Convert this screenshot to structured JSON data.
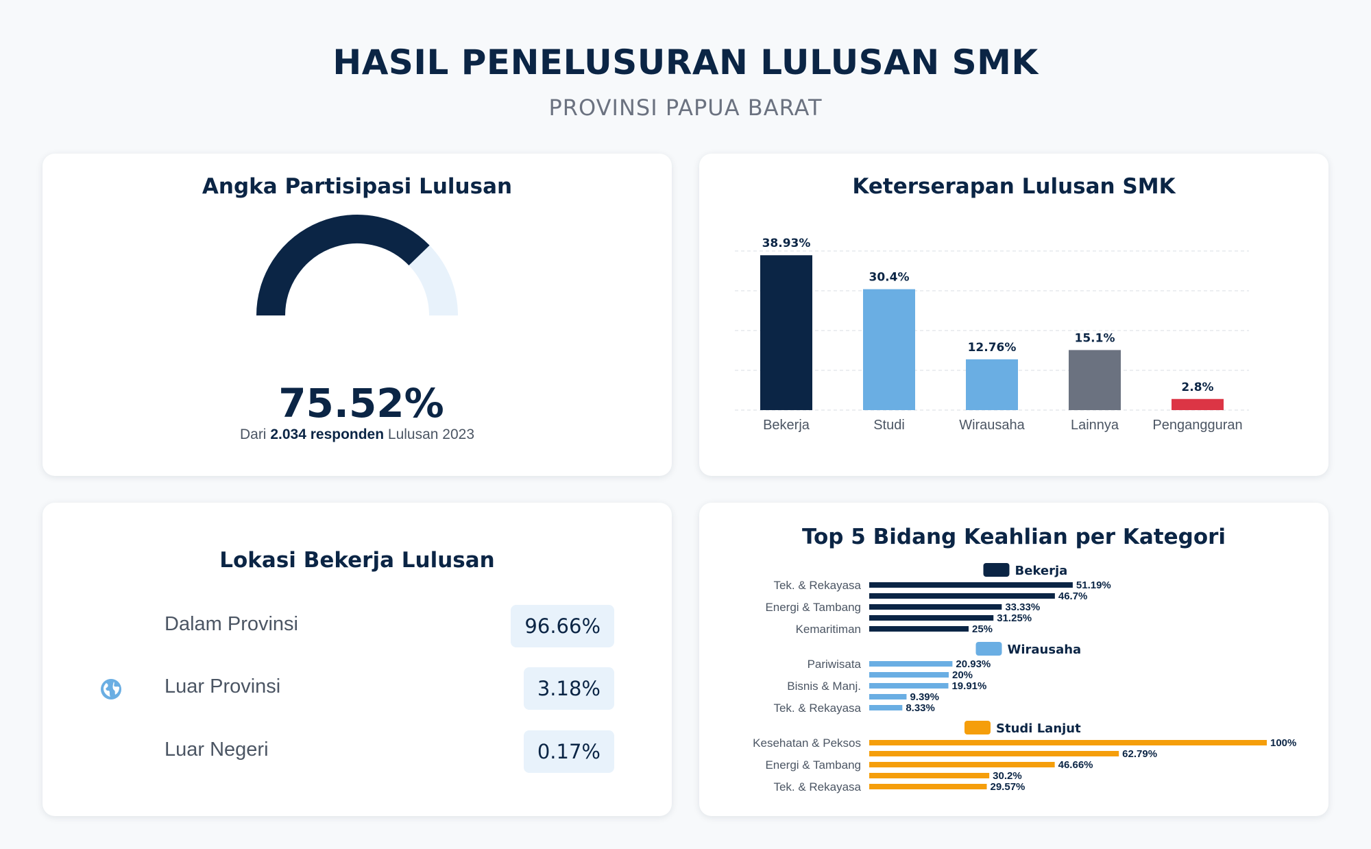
{
  "header": {
    "title": "HASIL PENELUSURAN LULUSAN SMK",
    "subtitle": "PROVINSI PAPUA BARAT"
  },
  "partisipasi": {
    "title": "Angka Partisipasi Lulusan",
    "value_label": "75.52%",
    "value": 75.52,
    "note_prefix": "Dari",
    "note_bold": "2.034 responden",
    "note_suffix": "Lulusan 2023",
    "colors": {
      "fill": "#0b2545",
      "track": "#e8f2fb"
    }
  },
  "keterserapan": {
    "title": "Keterserapan Lulusan SMK"
  },
  "lokasi": {
    "title": "Lokasi Bekerja Lulusan",
    "icon": "globe-icon",
    "rows": [
      {
        "label": "Dalam Provinsi",
        "value": "96.66%"
      },
      {
        "label": "Luar Provinsi",
        "value": "3.18%"
      },
      {
        "label": "Luar Negeri",
        "value": "0.17%"
      }
    ]
  },
  "top5": {
    "title": "Top 5 Bidang Keahlian per Kategori"
  },
  "chart_data": [
    {
      "type": "bar",
      "title": "Keterserapan Lulusan SMK",
      "categories": [
        "Bekerja",
        "Studi",
        "Wirausaha",
        "Lainnya",
        "Pengangguran"
      ],
      "values": [
        38.93,
        30.4,
        12.76,
        15.1,
        2.8
      ],
      "value_labels": [
        "38.93%",
        "30.4%",
        "12.76%",
        "15.1%",
        "2.8%"
      ],
      "colors": [
        "#0b2545",
        "#6aaee3",
        "#6aaee3",
        "#6b7280",
        "#dc3545"
      ],
      "ylim": [
        0,
        40
      ],
      "grid": true
    },
    {
      "type": "bar",
      "orientation": "horizontal",
      "title": "Top 5 Bidang Keahlian per Kategori",
      "groups": [
        {
          "name": "Bekerja",
          "color": "#0b2545",
          "labels": [
            "Tek. & Rekayasa",
            "",
            "Energi & Tambang",
            "",
            "Kemaritiman"
          ],
          "values": [
            51.19,
            46.7,
            33.33,
            31.25,
            25
          ],
          "value_labels": [
            "51.19%",
            "46.7%",
            "33.33%",
            "31.25%",
            "25%"
          ]
        },
        {
          "name": "Wirausaha",
          "color": "#6aaee3",
          "labels": [
            "Pariwisata",
            "",
            "Bisnis & Manj.",
            "",
            "Tek. & Rekayasa"
          ],
          "values": [
            20.93,
            20,
            19.91,
            9.39,
            8.33
          ],
          "value_labels": [
            "20.93%",
            "20%",
            "19.91%",
            "9.39%",
            "8.33%"
          ]
        },
        {
          "name": "Studi Lanjut",
          "color": "#f59e0b",
          "labels": [
            "Kesehatan & Peksos",
            "",
            "Energi & Tambang",
            "",
            "Tek. & Rekayasa"
          ],
          "values": [
            100,
            62.79,
            46.66,
            30.2,
            29.57
          ],
          "value_labels": [
            "100%",
            "62.79%",
            "46.66%",
            "30.2%",
            "29.57%"
          ]
        }
      ]
    }
  ]
}
